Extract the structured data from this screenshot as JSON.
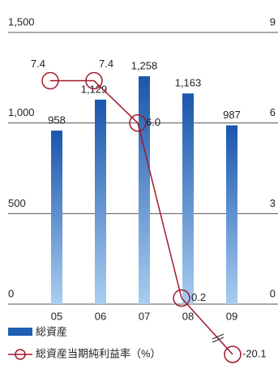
{
  "chart_data": {
    "type": "bar_line",
    "categories": [
      "05",
      "06",
      "07",
      "08",
      "09"
    ],
    "series": [
      {
        "name": "総資産",
        "type": "bar",
        "color": "#1e5fb4",
        "values": [
          958,
          1129,
          1258,
          1163,
          987
        ],
        "value_labels": [
          "958",
          "1,129",
          "1,258",
          "1,163",
          "987"
        ]
      },
      {
        "name": "総資産当期純利益率（%）",
        "type": "line",
        "axis": "y2",
        "color": "#a0182b",
        "values": [
          7.4,
          7.4,
          6.0,
          0.2,
          -20.1
        ],
        "value_labels": [
          "7.4",
          "7.4",
          "6.0",
          "0.2",
          "-20.1"
        ]
      }
    ],
    "ylim": [
      0,
      1500
    ],
    "yticks": [
      0,
      500,
      {
        "value": 1000,
        "label": "1,000"
      },
      {
        "value": 1500,
        "label": "1,500"
      }
    ],
    "y2lim": [
      0,
      9
    ],
    "y2ticks": [
      0,
      3,
      6,
      9
    ],
    "grid": true
  }
}
